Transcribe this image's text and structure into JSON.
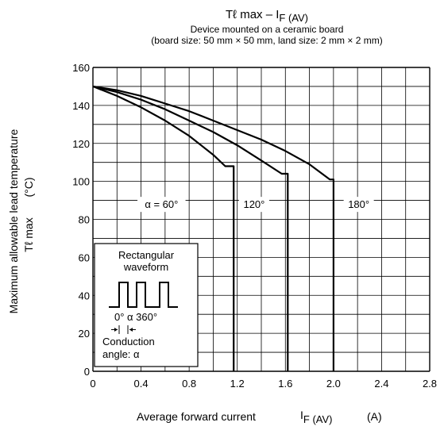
{
  "chart_data": {
    "type": "line",
    "title": "Tℓ max – I",
    "title_sub": "F (AV)",
    "subtitle_lines": [
      "Device mounted on a ceramic board",
      "(board size: 50 mm × 50 mm, land size: 2 mm × 2 mm)"
    ],
    "ylabel_line1": "Maximum allowable lead temperature",
    "ylabel_line2": "Tℓ max",
    "ylabel_unit": "(°C)",
    "xlabel": "Average forward current",
    "xlabel_sym": "I",
    "xlabel_sub": "F (AV)",
    "xlabel_unit": "(A)",
    "xlim": [
      0,
      2.8
    ],
    "ylim": [
      0,
      160
    ],
    "x_ticks": [
      0,
      0.2,
      0.4,
      0.6,
      0.8,
      1.0,
      1.2,
      1.4,
      1.6,
      1.8,
      2.0,
      2.2,
      2.4,
      2.6,
      2.8
    ],
    "x_tick_labels": [
      "0",
      "",
      "0.4",
      "",
      "0.8",
      "",
      "1.2",
      "",
      "1.6",
      "",
      "2.0",
      "",
      "2.4",
      "",
      "2.8"
    ],
    "y_ticks": [
      0,
      10,
      20,
      30,
      40,
      50,
      60,
      70,
      80,
      90,
      100,
      110,
      120,
      130,
      140,
      150,
      160
    ],
    "y_tick_labels": [
      "0",
      "",
      "20",
      "",
      "40",
      "",
      "60",
      "",
      "80",
      "",
      "100",
      "",
      "120",
      "",
      "140",
      "",
      "160"
    ],
    "grid": true,
    "series": [
      {
        "name": "α = 60°",
        "label_pos": [
          0.57,
          86
        ],
        "points": [
          [
            0,
            150
          ],
          [
            0.2,
            145
          ],
          [
            0.4,
            139
          ],
          [
            0.6,
            132
          ],
          [
            0.8,
            124
          ],
          [
            1.0,
            114
          ],
          [
            1.1,
            108
          ],
          [
            1.17,
            108
          ],
          [
            1.17,
            0
          ]
        ]
      },
      {
        "name": "120°",
        "label_pos": [
          1.34,
          86
        ],
        "points": [
          [
            0,
            150
          ],
          [
            0.2,
            147
          ],
          [
            0.4,
            143
          ],
          [
            0.6,
            138
          ],
          [
            0.8,
            132
          ],
          [
            1.0,
            126
          ],
          [
            1.2,
            119
          ],
          [
            1.4,
            111
          ],
          [
            1.57,
            104
          ],
          [
            1.62,
            104
          ],
          [
            1.62,
            0
          ]
        ]
      },
      {
        "name": "180°",
        "label_pos": [
          2.21,
          86
        ],
        "points": [
          [
            0,
            150
          ],
          [
            0.2,
            148
          ],
          [
            0.4,
            145
          ],
          [
            0.6,
            141
          ],
          [
            0.8,
            137
          ],
          [
            1.0,
            132
          ],
          [
            1.2,
            127
          ],
          [
            1.4,
            122
          ],
          [
            1.6,
            116
          ],
          [
            1.8,
            109
          ],
          [
            1.97,
            101
          ],
          [
            2.0,
            101
          ],
          [
            2.0,
            0
          ]
        ]
      }
    ],
    "inset": {
      "line1": "Rectangular",
      "line2": "waveform",
      "angles": "0° α 360°",
      "line3": "Conduction",
      "line4": "angle: α"
    }
  }
}
